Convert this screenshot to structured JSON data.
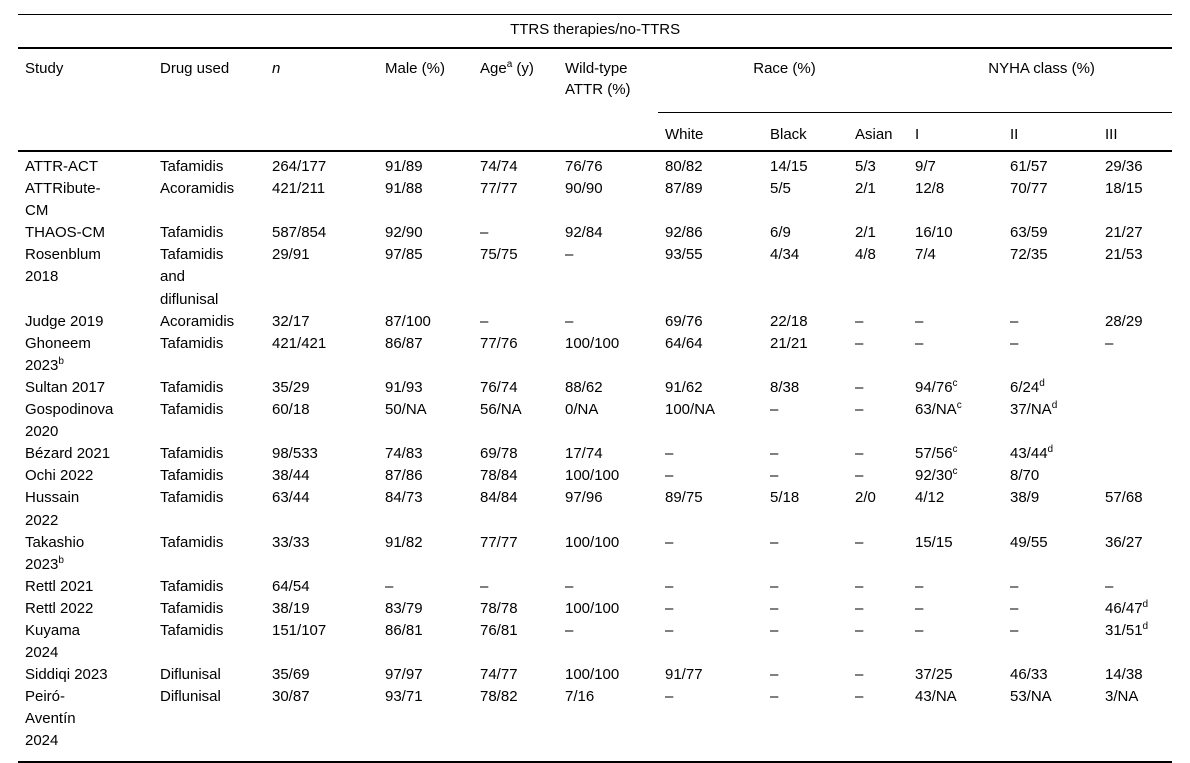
{
  "table": {
    "title": "TTRS therapies/no-TTRS",
    "headers": {
      "study": "Study",
      "drug_used": "Drug used",
      "n": "n",
      "male": "Male (%)",
      "age": "Age^a (y)",
      "wild_type": "Wild-type ATTR (%)",
      "race_group": "Race (%)",
      "nyha_group": "NYHA class (%)",
      "race_sub": [
        "White",
        "Black",
        "Asian"
      ],
      "nyha_sub": [
        "I",
        "II",
        "III"
      ]
    },
    "rows": [
      [
        "ATTR-ACT",
        "Tafamidis",
        "264/177",
        "91/89",
        "74/74",
        "76/76",
        "80/82",
        "14/15",
        "5/3",
        "9/7",
        "61/57",
        "29/36"
      ],
      [
        "ATTRibute-CM",
        "Acoramidis",
        "421/211",
        "91/88",
        "77/77",
        "90/90",
        "87/89",
        "5/5",
        "2/1",
        "12/8",
        "70/77",
        "18/15"
      ],
      [
        "THAOS-CM",
        "Tafamidis",
        "587/854",
        "92/90",
        "–",
        "92/84",
        "92/86",
        "6/9",
        "2/1",
        "16/10",
        "63/59",
        "21/27"
      ],
      [
        "Rosenblum 2018",
        "Tafamidis and diflunisal",
        "29/91",
        "97/85",
        "75/75",
        "–",
        "93/55",
        "4/34",
        "4/8",
        "7/4",
        "72/35",
        "21/53"
      ],
      [
        "Judge 2019",
        "Acoramidis",
        "32/17",
        "87/100",
        "–",
        "–",
        "69/76",
        "22/18",
        "–",
        "–",
        "–",
        "28/29"
      ],
      [
        "Ghoneem 2023^b",
        "Tafamidis",
        "421/421",
        "86/87",
        "77/76",
        "100/100",
        "64/64",
        "21/21",
        "–",
        "–",
        "–",
        "–"
      ],
      [
        "Sultan 2017",
        "Tafamidis",
        "35/29",
        "91/93",
        "76/74",
        "88/62",
        "91/62",
        "8/38",
        "–",
        "94/76^c",
        "6/24^d",
        ""
      ],
      [
        "Gospodinova 2020",
        "Tafamidis",
        "60/18",
        "50/NA",
        "56/NA",
        "0/NA",
        "100/NA",
        "–",
        "–",
        "63/NA^c",
        "37/NA^d",
        ""
      ],
      [
        "Bézard 2021",
        "Tafamidis",
        "98/533",
        "74/83",
        "69/78",
        "17/74",
        "–",
        "–",
        "–",
        "57/56^c",
        "43/44^d",
        ""
      ],
      [
        "Ochi 2022",
        "Tafamidis",
        "38/44",
        "87/86",
        "78/84",
        "100/100",
        "–",
        "–",
        "–",
        "92/30^c",
        "8/70",
        ""
      ],
      [
        "Hussain 2022",
        "Tafamidis",
        "63/44",
        "84/73",
        "84/84",
        "97/96",
        "89/75",
        "5/18",
        "2/0",
        "4/12",
        "38/9",
        "57/68"
      ],
      [
        "Takashio 2023^b",
        "Tafamidis",
        "33/33",
        "91/82",
        "77/77",
        "100/100",
        "–",
        "–",
        "–",
        "15/15",
        "49/55",
        "36/27"
      ],
      [
        "Rettl 2021",
        "Tafamidis",
        "64/54",
        "–",
        "–",
        "–",
        "–",
        "–",
        "–",
        "–",
        "–",
        "–"
      ],
      [
        "Rettl 2022",
        "Tafamidis",
        "38/19",
        "83/79",
        "78/78",
        "100/100",
        "–",
        "–",
        "–",
        "–",
        "–",
        "46/47^d"
      ],
      [
        "Kuyama 2024",
        "Tafamidis",
        "151/107",
        "86/81",
        "76/81",
        "–",
        "–",
        "–",
        "–",
        "–",
        "–",
        "31/51^d"
      ],
      [
        "Siddiqi 2023",
        "Diflunisal",
        "35/69",
        "97/97",
        "74/77",
        "100/100",
        "91/77",
        "–",
        "–",
        "37/25",
        "46/33",
        "14/38"
      ],
      [
        "Peiró-Aventín 2024",
        "Diflunisal",
        "30/87",
        "93/71",
        "78/82",
        "7/16",
        "–",
        "–",
        "–",
        "43/NA",
        "53/NA",
        "3/NA"
      ]
    ]
  }
}
